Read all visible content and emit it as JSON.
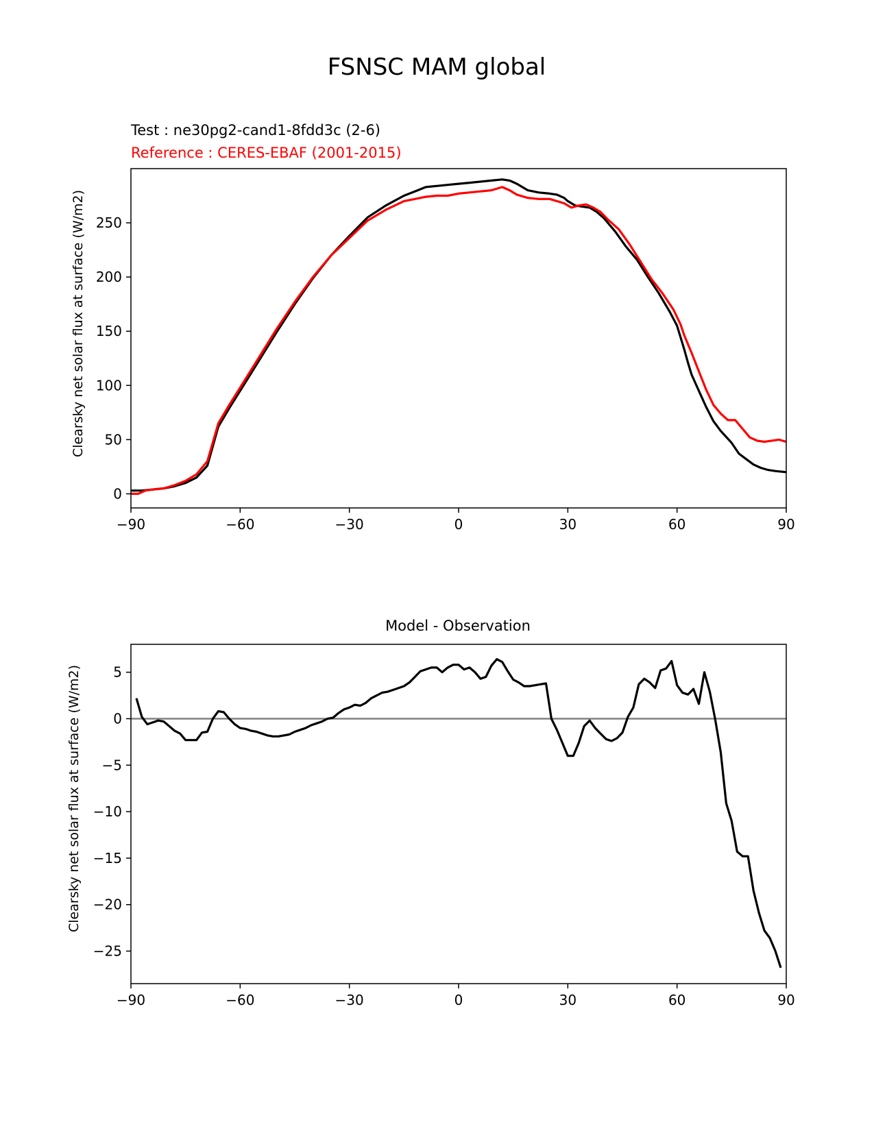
{
  "figure_title": "FSNSC MAM global",
  "chart_data": [
    {
      "type": "line",
      "title": "",
      "legend_texts": [
        {
          "text": "Test : ne30pg2-cand1-8fdd3c (2-6)",
          "color": "#000000"
        },
        {
          "text": "Reference : CERES-EBAF (2001-2015)",
          "color": "#ff0000"
        }
      ],
      "xlabel": "",
      "ylabel": "Clearsky net solar flux at surface (W/m2)",
      "xlim": [
        -90,
        90
      ],
      "ylim": [
        -13,
        300
      ],
      "xticks": [
        -90,
        -60,
        -30,
        0,
        30,
        60,
        90
      ],
      "xtick_labels": [
        "−90",
        "−60",
        "−30",
        "0",
        "30",
        "60",
        "90"
      ],
      "yticks": [
        0,
        50,
        100,
        150,
        200,
        250
      ],
      "ytick_labels": [
        "0",
        "50",
        "100",
        "150",
        "200",
        "250"
      ],
      "grid": false,
      "series": [
        {
          "color": "#000000",
          "x": [
            -90,
            -87,
            -84,
            -81,
            -78,
            -75,
            -72,
            -69,
            -66,
            -63,
            -60,
            -55,
            -50,
            -45,
            -40,
            -35,
            -30,
            -25,
            -20,
            -15,
            -12,
            -9,
            -6,
            -3,
            0,
            3,
            6,
            9,
            12,
            14,
            16,
            19,
            22,
            25,
            27,
            29,
            30,
            32,
            34,
            36,
            38,
            40,
            43,
            46,
            49,
            52,
            55,
            58,
            60,
            61,
            62,
            63,
            64,
            66,
            68,
            70,
            72,
            75,
            77,
            79,
            81,
            83,
            85,
            87,
            90
          ],
          "y": [
            3,
            3,
            4,
            5,
            7,
            10,
            15,
            26,
            62,
            79,
            95,
            122,
            149,
            175,
            199,
            220,
            238,
            255,
            266,
            275,
            279,
            283,
            284,
            285,
            286,
            287,
            288,
            289,
            290,
            289,
            286,
            280,
            278,
            277,
            276,
            273,
            270,
            266,
            265,
            264,
            260,
            254,
            242,
            228,
            216,
            200,
            185,
            168,
            155,
            144,
            133,
            121,
            110,
            95,
            80,
            67,
            58,
            47,
            37,
            32,
            27,
            24,
            22,
            21,
            20
          ]
        },
        {
          "color": "#ff0000",
          "x": [
            -90,
            -88,
            -86,
            -84,
            -81,
            -78,
            -75,
            -72,
            -69,
            -66,
            -63,
            -60,
            -55,
            -50,
            -45,
            -40,
            -35,
            -30,
            -25,
            -20,
            -15,
            -12,
            -9,
            -6,
            -3,
            0,
            3,
            6,
            9,
            12,
            14,
            16,
            19,
            22,
            25,
            27,
            29,
            31,
            33,
            35,
            37,
            39,
            41,
            44,
            47,
            50,
            53,
            56,
            59,
            61,
            62,
            64,
            66,
            68,
            70,
            72,
            74,
            76,
            78,
            80,
            82,
            84,
            86,
            88,
            90
          ],
          "y": [
            0,
            0,
            3,
            4,
            5,
            8,
            12,
            18,
            30,
            65,
            82,
            98,
            125,
            152,
            177,
            200,
            220,
            236,
            252,
            262,
            270,
            272,
            274,
            275,
            275,
            277,
            278,
            279,
            280,
            283,
            280,
            276,
            273,
            272,
            272,
            270,
            268,
            264,
            266,
            267,
            264,
            260,
            253,
            244,
            230,
            214,
            198,
            185,
            170,
            156,
            146,
            130,
            113,
            96,
            82,
            74,
            68,
            68,
            60,
            52,
            49,
            48,
            49,
            50,
            48
          ]
        }
      ],
      "zero_line": false
    },
    {
      "type": "line",
      "title": "Model - Observation",
      "xlabel": "",
      "ylabel": "Clearsky net solar flux at surface (W/m2)",
      "xlim": [
        -90,
        90
      ],
      "ylim": [
        -28.5,
        8
      ],
      "xticks": [
        -90,
        -60,
        -30,
        0,
        30,
        60,
        90
      ],
      "xtick_labels": [
        "−90",
        "−60",
        "−30",
        "0",
        "30",
        "60",
        "90"
      ],
      "yticks": [
        -25,
        -20,
        -15,
        -10,
        -5,
        0,
        5
      ],
      "ytick_labels": [
        "−25",
        "−20",
        "−15",
        "−10",
        "−5",
        "0",
        "5"
      ],
      "grid": false,
      "zero_line": true,
      "zero_line_color": "#808080",
      "series": [
        {
          "color": "#000000",
          "x": [
            -88.5,
            -87,
            -85.5,
            -84,
            -82.5,
            -81,
            -79.5,
            -78,
            -76.5,
            -75,
            -73.5,
            -72,
            -70.5,
            -69,
            -67.5,
            -66,
            -64.5,
            -63,
            -61.5,
            -60,
            -58.5,
            -57,
            -55.5,
            -54,
            -52.5,
            -51,
            -49.5,
            -48,
            -46.5,
            -45,
            -43.5,
            -42,
            -40.5,
            -39,
            -37.5,
            -36,
            -34.5,
            -33,
            -31.5,
            -30,
            -28.5,
            -27,
            -25.5,
            -24,
            -22.5,
            -21,
            -19.5,
            -18,
            -16.5,
            -15,
            -13.5,
            -12,
            -10.5,
            -9,
            -7.5,
            -6,
            -4.5,
            -3,
            -1.5,
            0,
            1.5,
            3,
            4.5,
            6,
            7.5,
            9,
            10.5,
            12,
            13.5,
            15,
            16.5,
            18,
            19.5,
            21,
            22.5,
            24,
            25.5,
            27,
            28.5,
            30,
            31.5,
            33,
            34.5,
            36,
            37.5,
            39,
            40.5,
            42,
            43.5,
            45,
            46.5,
            48,
            49.5,
            51,
            52.5,
            54,
            55.5,
            57,
            58.5,
            60,
            61.5,
            63,
            64.5,
            66,
            67.5,
            69,
            70.5,
            72,
            73.5,
            75,
            76.5,
            78,
            79.5,
            81,
            82.5,
            84,
            85.5,
            87,
            88.5
          ],
          "y": [
            2.2,
            0.2,
            -0.6,
            -0.4,
            -0.2,
            -0.3,
            -0.8,
            -1.3,
            -1.6,
            -2.3,
            -2.3,
            -2.3,
            -1.5,
            -1.4,
            0.0,
            0.8,
            0.7,
            0.0,
            -0.6,
            -1.0,
            -1.1,
            -1.3,
            -1.4,
            -1.6,
            -1.8,
            -1.9,
            -1.9,
            -1.8,
            -1.7,
            -1.4,
            -1.2,
            -1.0,
            -0.7,
            -0.5,
            -0.3,
            0.0,
            0.1,
            0.6,
            1.0,
            1.2,
            1.5,
            1.4,
            1.7,
            2.2,
            2.5,
            2.8,
            2.9,
            3.1,
            3.3,
            3.5,
            3.9,
            4.5,
            5.1,
            5.3,
            5.5,
            5.5,
            5.0,
            5.5,
            5.8,
            5.8,
            5.3,
            5.5,
            5.0,
            4.3,
            4.5,
            5.7,
            6.4,
            6.1,
            5.1,
            4.2,
            3.9,
            3.5,
            3.5,
            3.6,
            3.7,
            3.8,
            0.0,
            -1.2,
            -2.6,
            -4.0,
            -4.0,
            -2.6,
            -0.8,
            -0.2,
            -1.0,
            -1.6,
            -2.2,
            -2.4,
            -2.1,
            -1.5,
            0.2,
            1.2,
            3.7,
            4.3,
            3.9,
            3.3,
            5.2,
            5.4,
            6.2,
            3.6,
            2.8,
            2.6,
            3.2,
            1.6,
            5.0,
            2.9,
            -0.1,
            -3.6,
            -9.1,
            -11.0,
            -14.3,
            -14.8,
            -14.8,
            -18.5,
            -20.9,
            -22.8,
            -23.6,
            -25.0,
            -26.8
          ]
        }
      ]
    }
  ]
}
